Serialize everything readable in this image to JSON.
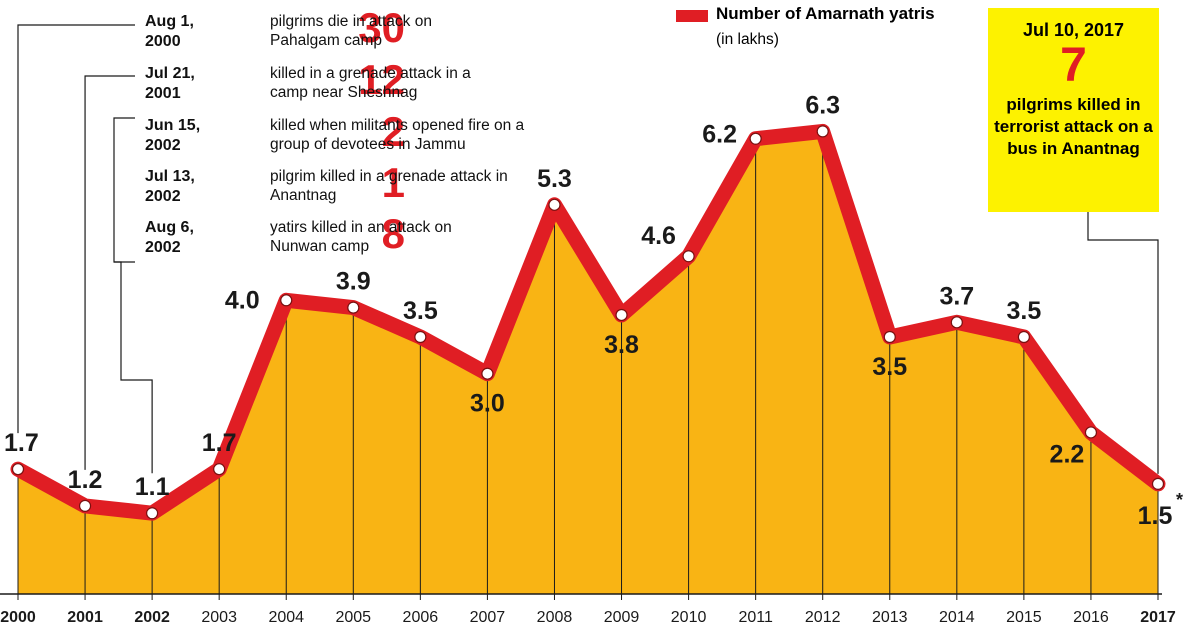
{
  "chart_data": {
    "type": "area",
    "x": [
      "2000",
      "2001",
      "2002",
      "2003",
      "2004",
      "2005",
      "2006",
      "2007",
      "2008",
      "2009",
      "2010",
      "2011",
      "2012",
      "2013",
      "2014",
      "2015",
      "2016",
      "2017"
    ],
    "series": [
      {
        "name": "Number of Amarnath yatris",
        "values": [
          1.7,
          1.2,
          1.1,
          1.7,
          4.0,
          3.9,
          3.5,
          3.0,
          5.3,
          3.8,
          4.6,
          6.2,
          6.3,
          3.5,
          3.7,
          3.5,
          2.2,
          1.5
        ]
      }
    ],
    "value_labels": [
      "1.7",
      "1.2",
      "1.1",
      "1.7",
      "4.0",
      "3.9",
      "3.5",
      "3.0",
      "5.3",
      "3.8",
      "4.6",
      "6.2",
      "6.3",
      "3.5",
      "3.7",
      "3.5",
      "2.2",
      "1.5"
    ],
    "last_value_marker": "*",
    "ylim": [
      0,
      7
    ],
    "grid": false,
    "colors": {
      "line": "#e01e24",
      "fill": "#f9b414",
      "text": "#1a1a1a",
      "callout_bg": "#fdf200"
    }
  },
  "legend": {
    "label": "Number of Amarnath yatris",
    "sublabel": "(in lakhs)"
  },
  "annotations": [
    {
      "date": "Aug 1, 2000",
      "count": "30",
      "text": "pilgrims die in attack on Pahalgam camp",
      "year": "2000"
    },
    {
      "date": "Jul 21, 2001",
      "count": "12",
      "text": "killed in a grenade attack in a camp near Sheshnag",
      "year": "2001"
    },
    {
      "date": "Jun 15, 2002",
      "count": "2",
      "text": "killed when militants opened fire on a group of devotees in Jammu",
      "year": "2002"
    },
    {
      "date": "Jul 13, 2002",
      "count": "1",
      "text": "pilgrim killed in a grenade attack in Anantnag",
      "year": "2002"
    },
    {
      "date": "Aug 6, 2002",
      "count": "8",
      "text": "yatirs killed in an attack on Nunwan camp",
      "year": "2002"
    }
  ],
  "callout": {
    "date": "Jul 10, 2017",
    "count": "7",
    "text": "pilgrims killed in terrorist attack on a bus in Anantnag",
    "year": "2017"
  }
}
